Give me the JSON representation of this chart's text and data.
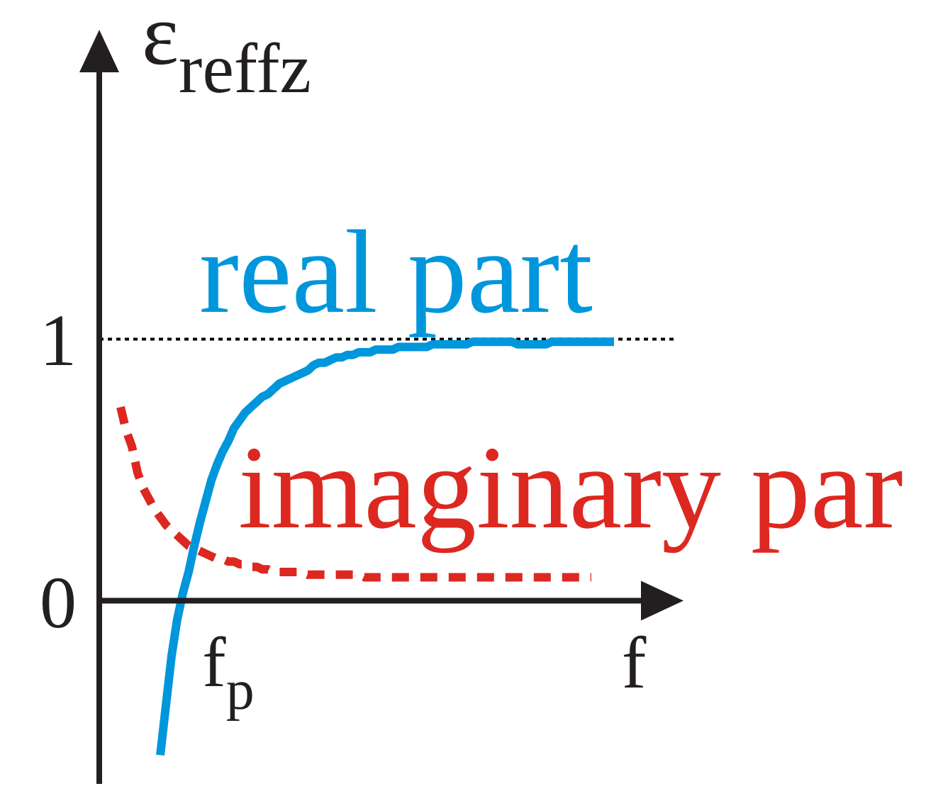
{
  "chart_data": {
    "type": "line",
    "xlabel": "f",
    "ylabel": "ε$_{reffz}$",
    "categories": [
      null,
      null,
      null,
      null,
      null,
      null,
      null,
      null,
      null,
      null,
      null,
      null,
      null,
      null,
      null,
      null,
      null,
      null,
      null,
      "f$_{p}$",
      null,
      null,
      null,
      null,
      null,
      null,
      null,
      null,
      null,
      null,
      null,
      null,
      null,
      null,
      null,
      null,
      null,
      null,
      null,
      null,
      null,
      null,
      null,
      null,
      null,
      null,
      null,
      null,
      null,
      null,
      null,
      null,
      null,
      null,
      null,
      null,
      null,
      null,
      null,
      null,
      null,
      null,
      null,
      null,
      null,
      null,
      null,
      null,
      null,
      null,
      null,
      null,
      null,
      null,
      null,
      null,
      null,
      null,
      null,
      null,
      null,
      null,
      null,
      null,
      null,
      null,
      null,
      null
    ],
    "series": [
      {
        "name": "real part",
        "color": "#0096dc",
        "values": [
          null,
          null,
          null,
          null,
          null,
          null,
          null,
          -0.59,
          -0.4,
          -0.21,
          -0.07,
          0.03,
          0.11,
          0.21,
          0.3,
          0.38,
          0.46,
          0.52,
          0.57,
          0.61,
          0.66,
          0.69,
          0.72,
          0.74,
          0.76,
          0.78,
          0.79,
          0.81,
          0.83,
          0.84,
          0.85,
          0.86,
          0.87,
          0.88,
          0.9,
          0.91,
          0.91,
          0.92,
          0.93,
          0.93,
          0.94,
          0.94,
          0.95,
          0.95,
          0.95,
          0.96,
          0.96,
          0.96,
          0.96,
          0.97,
          0.97,
          0.97,
          0.97,
          0.97,
          0.97,
          0.98,
          0.98,
          0.98,
          0.98,
          0.98,
          0.98,
          0.98,
          0.99,
          0.99,
          0.99,
          0.99,
          0.99,
          0.99,
          0.99,
          0.99,
          0.98,
          0.98,
          0.98,
          0.98,
          0.98,
          0.98,
          0.99,
          0.99,
          0.99,
          0.99,
          0.99,
          0.99,
          0.99,
          0.99,
          0.99,
          0.99,
          0.99,
          0.99
        ]
      },
      {
        "name": "imaginary par",
        "color": "#dc2820",
        "line_style": "dashed",
        "values": [
          0.74,
          0.65,
          0.59,
          0.49,
          0.43,
          0.39,
          0.35,
          0.32,
          0.29,
          0.27,
          0.25,
          0.23,
          0.21,
          0.2,
          0.19,
          0.18,
          0.17,
          0.16,
          0.16,
          0.15,
          0.15,
          0.14,
          0.14,
          0.13,
          0.13,
          0.12,
          0.12,
          0.11,
          0.11,
          0.11,
          0.11,
          0.11,
          0.11,
          0.1,
          0.1,
          0.1,
          0.1,
          0.1,
          0.1,
          0.1,
          0.1,
          0.1,
          0.1,
          0.09,
          0.09,
          0.09,
          0.09,
          0.09,
          0.09,
          0.09,
          0.09,
          0.09,
          0.09,
          0.09,
          0.09,
          0.09,
          0.09,
          0.09,
          0.09,
          0.09,
          0.09,
          0.09,
          0.09,
          0.09,
          0.09,
          0.09,
          0.09,
          0.09,
          0.09,
          0.09,
          0.09,
          0.09,
          0.09,
          0.09,
          0.09,
          0.09,
          0.09,
          0.09,
          0.09,
          0.09,
          0.09,
          0.09,
          0.09,
          0.09,
          null,
          null,
          null,
          null
        ]
      }
    ],
    "ylim": [
      -0.7,
      2.15
    ],
    "yticks": [
      0,
      1
    ],
    "ref_lines": [
      {
        "axis": "y",
        "value": 1,
        "color": "#000000",
        "line_style": "dotted"
      }
    ],
    "marker": "none"
  }
}
